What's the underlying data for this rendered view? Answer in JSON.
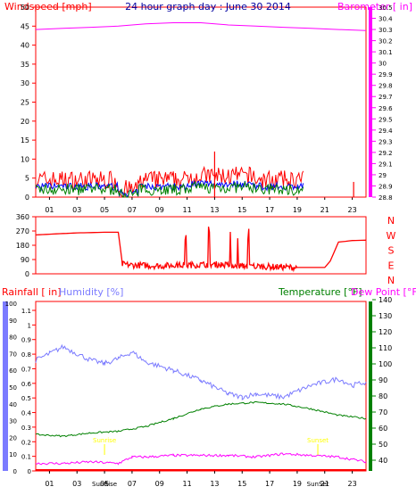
{
  "header": {
    "title": "24 hour graph day : June 30 2014",
    "left_label": "Windspeed [mph]",
    "right_label": "Barometer [ in]"
  },
  "colors": {
    "wind_speed": "#ff0000",
    "wind_avg": "#0000ff",
    "wind_gust": "#008000",
    "barometer": "#ff00ff",
    "direction": "#ff0000",
    "rain": "#ff0000",
    "humidity": "#7b7bff",
    "temperature": "#008000",
    "dew_point": "#ff00ff",
    "sun_marker": "#ffff00",
    "title": "#0000a0"
  },
  "chart_data": [
    {
      "type": "line",
      "name": "wind-barometer",
      "left_axis": {
        "label": "Windspeed [mph]",
        "ticks": [
          "0",
          "5",
          "10",
          "15",
          "20",
          "25",
          "30",
          "35",
          "40",
          "45",
          "50"
        ],
        "ylim": [
          0,
          50
        ]
      },
      "right_axis": {
        "label": "Barometer [ in]",
        "ticks": [
          "28.8",
          "28.9",
          "29",
          "29.1",
          "29.2",
          "29.3",
          "29.4",
          "29.5",
          "29.6",
          "29.7",
          "29.8",
          "29.9",
          "30",
          "30.1",
          "30.2",
          "30.3",
          "30.4",
          "30.5"
        ],
        "ylim": [
          28.8,
          30.5
        ]
      },
      "x_ticks": [
        "01",
        "03",
        "05",
        "07",
        "09",
        "11",
        "13",
        "15",
        "17",
        "19",
        "21",
        "23"
      ],
      "xlim": [
        0,
        24
      ],
      "barometer": {
        "x": [
          0,
          2,
          4,
          6,
          8,
          10,
          12,
          14,
          16,
          18,
          20,
          22,
          24
        ],
        "y": [
          30.3,
          30.31,
          30.32,
          30.33,
          30.35,
          30.36,
          30.36,
          30.34,
          30.33,
          30.32,
          30.31,
          30.3,
          30.29
        ]
      },
      "wind_active_hours": [
        0,
        19.5
      ],
      "wind_spikes": [
        {
          "x": 13,
          "y": 12
        },
        {
          "x": 23.1,
          "y": 4
        }
      ]
    },
    {
      "type": "line",
      "name": "wind-direction",
      "left_ticks": [
        "0",
        "90",
        "180",
        "270",
        "360"
      ],
      "right_ticks": [
        "N",
        "W",
        "S",
        "E",
        "N"
      ],
      "ylim": [
        0,
        360
      ],
      "x": [
        0,
        1,
        3,
        5,
        6,
        6.3,
        7,
        9,
        11,
        13,
        15,
        17,
        19,
        21,
        21.4,
        22,
        23,
        24
      ],
      "y": [
        245,
        250,
        258,
        262,
        262,
        60,
        55,
        50,
        55,
        60,
        50,
        45,
        40,
        40,
        80,
        200,
        210,
        212
      ]
    },
    {
      "type": "line",
      "name": "rain-humidity-temperature",
      "left_labels": {
        "rain": "Rainfall [ in]",
        "humidity": "Humidity [%]"
      },
      "right_labels": {
        "temperature": "Temperature [°F]",
        "dew_point": "Dew Point [°F]"
      },
      "humidity_ticks": [
        "0",
        "10",
        "20",
        "30",
        "40",
        "50",
        "60",
        "70",
        "80",
        "90",
        "100"
      ],
      "rain_ticks": [
        "0",
        "0.1",
        "0.2",
        "0.3",
        "0.4",
        "0.5",
        "0.6",
        "0.7",
        "0.8",
        "0.9",
        "1",
        "1.1"
      ],
      "temp_ticks": [
        "40",
        "50",
        "60",
        "70",
        "80",
        "90",
        "100",
        "110",
        "120",
        "130",
        "140"
      ],
      "x_ticks": [
        "01",
        "03",
        "05",
        "07",
        "09",
        "11",
        "13",
        "15",
        "17",
        "19",
        "21",
        "23"
      ],
      "humidity": {
        "x": [
          0,
          1,
          2,
          3,
          4,
          5,
          6,
          7,
          8,
          10,
          12,
          14,
          15,
          16,
          18,
          20,
          22,
          23,
          24
        ],
        "y": [
          66,
          70,
          74,
          70,
          66,
          64,
          67,
          71,
          65,
          60,
          54,
          46,
          44,
          46,
          44,
          51,
          55,
          51,
          53
        ]
      },
      "temperature": {
        "x": [
          0,
          2,
          4,
          6,
          8,
          10,
          12,
          14,
          16,
          18,
          20,
          22,
          24
        ],
        "y": [
          56,
          55,
          57,
          58,
          61,
          66,
          72,
          75,
          76,
          75,
          72,
          68,
          66
        ]
      },
      "dew_point": {
        "x": [
          0,
          2,
          4,
          6,
          7,
          8,
          10,
          12,
          14,
          16,
          18,
          20,
          22,
          24
        ],
        "y": [
          38,
          38,
          39,
          38,
          42,
          42,
          43,
          43,
          43,
          42,
          44,
          43,
          42,
          39
        ]
      },
      "sun_markers": {
        "sunrise_label": "Sunrise",
        "sunset_label": "Sunset",
        "sunrise_x": 5,
        "sunset_x": 20.5
      },
      "axis_markers": [
        "SunRise",
        "SunSet"
      ]
    }
  ]
}
